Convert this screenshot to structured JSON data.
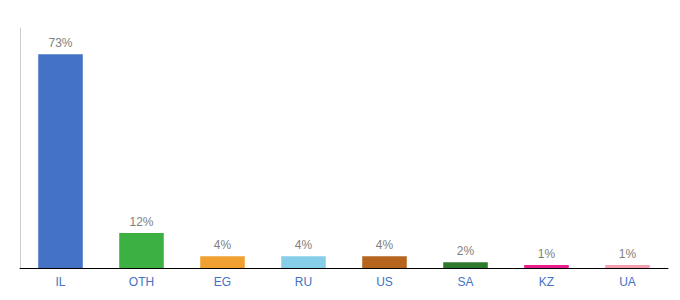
{
  "chart_data": {
    "type": "bar",
    "categories": [
      "IL",
      "OTH",
      "EG",
      "RU",
      "US",
      "SA",
      "KZ",
      "UA"
    ],
    "values": [
      73,
      12,
      4,
      4,
      4,
      2,
      1,
      1
    ],
    "value_labels": [
      "73%",
      "12%",
      "4%",
      "4%",
      "4%",
      "2%",
      "1%",
      "1%"
    ],
    "colors": [
      "#4472c4",
      "#3cb043",
      "#f0a030",
      "#87ceeb",
      "#b5651d",
      "#2d7a2d",
      "#e91e8c",
      "#f4a0b0"
    ],
    "ylim": [
      0,
      82
    ],
    "grid": false,
    "data_labels": true,
    "tick_labels": "x"
  }
}
